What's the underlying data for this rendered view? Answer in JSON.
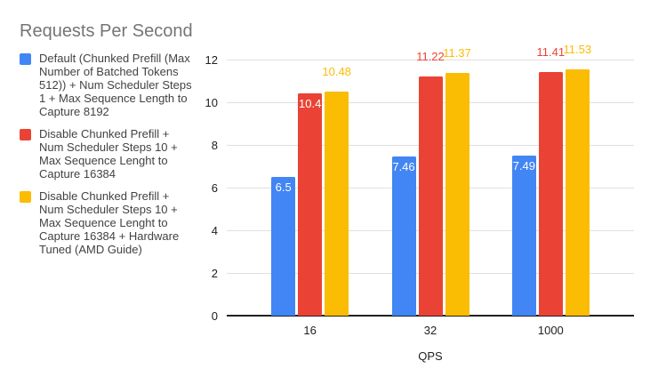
{
  "title": "Requests Per Second",
  "colors": {
    "title": "#757575",
    "legend_text": "#424242",
    "axis_text": "#212121",
    "gridline": "#e0e0e0",
    "baseline": "#212121",
    "background": "#ffffff",
    "inside_label": "#ffffff"
  },
  "chart_data": {
    "type": "bar",
    "title": "Requests Per Second",
    "xlabel": "QPS",
    "ylabel": "",
    "categories": [
      "16",
      "32",
      "1000"
    ],
    "series": [
      {
        "name": "Default (Chunked Prefill (Max Number of Batched Tokens 512)) + Num Scheduler Steps 1 + Max Sequence Length to Capture 8192",
        "color": "#4285F4",
        "values": [
          6.5,
          7.46,
          7.49
        ],
        "labels": [
          "6.5",
          "7.46",
          "7.49"
        ],
        "label_placement": [
          "inside",
          "inside",
          "inside"
        ]
      },
      {
        "name": "Disable Chunked Prefill + Num Scheduler Steps 10 + Max Sequence Lenght to Capture 16384",
        "color": "#EA4335",
        "values": [
          10.4,
          11.22,
          11.41
        ],
        "labels": [
          "10.4",
          "11.22",
          "11.41"
        ],
        "label_placement": [
          "inside",
          "above",
          "above"
        ]
      },
      {
        "name": "Disable Chunked Prefill + Num Scheduler Steps 10 + Max Sequence Lenght to Capture 16384 + Hardware Tuned (AMD Guide)",
        "color": "#FBBC04",
        "values": [
          10.48,
          11.37,
          11.53
        ],
        "labels": [
          "10.48",
          "11.37",
          "11.53"
        ],
        "label_placement": [
          "above",
          "above",
          "above"
        ]
      }
    ],
    "y_ticks": [
      0,
      2,
      4,
      6,
      8,
      10,
      12
    ],
    "ylim": [
      0,
      12
    ],
    "grid": true,
    "legend_position": "left"
  }
}
